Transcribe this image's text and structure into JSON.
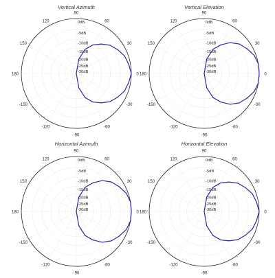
{
  "chart_data": [
    {
      "type": "polar",
      "title": "Vertical Azimuth",
      "angle_labels": [
        "90",
        "60",
        "30",
        "0",
        "-30",
        "-60",
        "-90",
        "-120",
        "-150",
        "180",
        "150",
        "120"
      ],
      "ring_labels": [
        "0dB",
        "-5dB",
        "-10dB",
        "-15dB",
        "-20dB",
        "-25dB",
        "-30dB"
      ],
      "r_range_db": [
        -30,
        0
      ],
      "grid": true,
      "series": [
        {
          "color": "#2a2aa0",
          "angles_deg": [
            -90,
            -80,
            -70,
            -60,
            -50,
            -40,
            -30,
            -20,
            -10,
            0,
            10,
            20,
            30,
            40,
            50,
            60,
            70,
            80,
            90
          ],
          "values_db": [
            -30,
            -22,
            -16,
            -12,
            -9,
            -6,
            -4,
            -2,
            -1,
            0,
            -1,
            -2,
            -4,
            -6,
            -9,
            -12,
            -16,
            -22,
            -30
          ]
        }
      ]
    },
    {
      "type": "polar",
      "title": "Vertical Elevation",
      "angle_labels": [
        "90",
        "60",
        "30",
        "0",
        "-30",
        "-60",
        "-90",
        "-120",
        "-150",
        "180",
        "150",
        "120"
      ],
      "ring_labels": [
        "0dB",
        "-5dB",
        "-10dB",
        "-15dB",
        "-20dB",
        "-25dB",
        "-30dB"
      ],
      "r_range_db": [
        -30,
        0
      ],
      "grid": true,
      "series": [
        {
          "color": "#2a2aa0",
          "angles_deg": [
            -90,
            -80,
            -70,
            -60,
            -50,
            -40,
            -30,
            -20,
            -10,
            0,
            10,
            20,
            30,
            40,
            50,
            60,
            70,
            80,
            90
          ],
          "values_db": [
            -30,
            -22,
            -16,
            -12,
            -8,
            -5,
            -3,
            -1,
            0,
            0,
            0,
            -1,
            -3,
            -5,
            -8,
            -12,
            -16,
            -22,
            -30
          ]
        }
      ]
    },
    {
      "type": "polar",
      "title": "Horizontal Azimuth",
      "angle_labels": [
        "90",
        "60",
        "30",
        "0",
        "-30",
        "-60",
        "-90",
        "-120",
        "-150",
        "180",
        "150",
        "120"
      ],
      "ring_labels": [
        "0dB",
        "-5dB",
        "-10dB",
        "-15dB",
        "-20dB",
        "-25dB",
        "-30dB"
      ],
      "r_range_db": [
        -30,
        0
      ],
      "grid": true,
      "series": [
        {
          "color": "#2a2aa0",
          "angles_deg": [
            -90,
            -80,
            -70,
            -60,
            -50,
            -40,
            -30,
            -20,
            -10,
            0,
            10,
            20,
            30,
            40,
            50,
            60,
            70,
            80,
            90
          ],
          "values_db": [
            -30,
            -22,
            -16,
            -12,
            -8,
            -5,
            -3,
            -1,
            0,
            0,
            0,
            -1,
            -3,
            -5,
            -8,
            -12,
            -16,
            -22,
            -30
          ]
        }
      ]
    },
    {
      "type": "polar",
      "title": "Horizontal Elevation",
      "angle_labels": [
        "90",
        "60",
        "30",
        "0",
        "-30",
        "-60",
        "-90",
        "-120",
        "-150",
        "180",
        "150",
        "120"
      ],
      "ring_labels": [
        "0dB",
        "-5dB",
        "-10dB",
        "-15dB",
        "-20dB",
        "-25dB",
        "-30dB"
      ],
      "r_range_db": [
        -30,
        0
      ],
      "grid": true,
      "series": [
        {
          "color": "#2a2aa0",
          "angles_deg": [
            -90,
            -80,
            -70,
            -60,
            -50,
            -40,
            -30,
            -20,
            -10,
            0,
            10,
            20,
            30,
            40,
            50,
            60,
            70,
            80,
            90
          ],
          "values_db": [
            -30,
            -22,
            -16,
            -12,
            -9,
            -6,
            -4,
            -2,
            -1,
            0,
            -1,
            -2,
            -4,
            -6,
            -9,
            -12,
            -16,
            -22,
            -30
          ]
        }
      ]
    }
  ]
}
